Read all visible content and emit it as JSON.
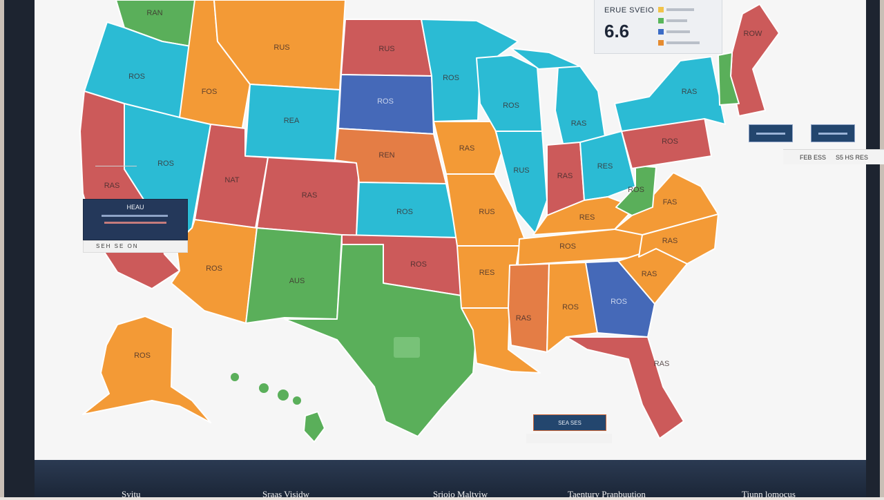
{
  "stat_card": {
    "label": "ERUE SVEIO",
    "value": "6.6",
    "legend_colors": [
      "#f1c34a",
      "#59b65b",
      "#3b6cc6",
      "#e58b2f"
    ]
  },
  "left_panel": {
    "title": "HEAU",
    "footer": "SEH SE ON"
  },
  "right_values": [
    "FEB ESS",
    "S5 HS RES"
  ],
  "bottom_legend": {
    "title": "SEA SES"
  },
  "tabs": [
    "Svitu",
    "Sraas Visidw",
    "Srioio Maltviw",
    "Taentury Pranbuution",
    "Tiunn lomocus"
  ],
  "colors": {
    "orange": "#f39a36",
    "teal": "#2bbbd4",
    "red": "#cc5a5a",
    "blue": "#4569b8",
    "green": "#5aaf5a",
    "burnt": "#e47d45",
    "frame": "#1d2430"
  },
  "states": [
    {
      "id": "washington",
      "label": "RAN",
      "color": "#5aaf5a"
    },
    {
      "id": "oregon",
      "label": "ROS",
      "color": "#2bbbd4"
    },
    {
      "id": "california",
      "label": "RAS",
      "color": "#cc5a5a"
    },
    {
      "id": "idaho",
      "label": "FOS",
      "color": "#f39a36"
    },
    {
      "id": "nevada",
      "label": "ROS",
      "color": "#2bbbd4"
    },
    {
      "id": "montana",
      "label": "RUS",
      "color": "#f39a36"
    },
    {
      "id": "wyoming",
      "label": "REA",
      "color": "#2bbbd4"
    },
    {
      "id": "utah",
      "label": "NAT",
      "color": "#cc5a5a"
    },
    {
      "id": "colorado",
      "label": "RAS",
      "color": "#cc5a5a"
    },
    {
      "id": "arizona",
      "label": "ROS",
      "color": "#f39a36"
    },
    {
      "id": "new-mexico",
      "label": "AUS",
      "color": "#5aaf5a"
    },
    {
      "id": "north-dakota",
      "label": "RUS",
      "color": "#cc5a5a"
    },
    {
      "id": "south-dakota",
      "label": "ROS",
      "color": "#4569b8"
    },
    {
      "id": "nebraska",
      "label": "REN",
      "color": "#e47d45"
    },
    {
      "id": "kansas",
      "label": "ROS",
      "color": "#2bbbd4"
    },
    {
      "id": "oklahoma",
      "label": "ROS",
      "color": "#cc5a5a"
    },
    {
      "id": "texas",
      "label": "",
      "color": "#5aaf5a"
    },
    {
      "id": "minnesota",
      "label": "ROS",
      "color": "#2bbbd4"
    },
    {
      "id": "iowa",
      "label": "RAS",
      "color": "#f39a36"
    },
    {
      "id": "missouri",
      "label": "RUS",
      "color": "#f39a36"
    },
    {
      "id": "arkansas",
      "label": "RES",
      "color": "#f39a36"
    },
    {
      "id": "louisiana",
      "label": "",
      "color": "#f39a36"
    },
    {
      "id": "wisconsin",
      "label": "ROS",
      "color": "#2bbbd4"
    },
    {
      "id": "illinois",
      "label": "RUS",
      "color": "#2bbbd4"
    },
    {
      "id": "michigan",
      "label": "RAS",
      "color": "#2bbbd4"
    },
    {
      "id": "indiana",
      "label": "RAS",
      "color": "#cc5a5a"
    },
    {
      "id": "ohio",
      "label": "RES",
      "color": "#2bbbd4"
    },
    {
      "id": "kentucky",
      "label": "RES",
      "color": "#f39a36"
    },
    {
      "id": "tennessee",
      "label": "ROS",
      "color": "#f39a36"
    },
    {
      "id": "mississippi",
      "label": "RAS",
      "color": "#e47d45"
    },
    {
      "id": "alabama",
      "label": "ROS",
      "color": "#f39a36"
    },
    {
      "id": "georgia",
      "label": "ROS",
      "color": "#4569b8"
    },
    {
      "id": "florida",
      "label": "RAS",
      "color": "#cc5a5a"
    },
    {
      "id": "south-carolina",
      "label": "RAS",
      "color": "#f39a36"
    },
    {
      "id": "north-carolina",
      "label": "RAS",
      "color": "#f39a36"
    },
    {
      "id": "virginia",
      "label": "FAS",
      "color": "#f39a36"
    },
    {
      "id": "west-virginia",
      "label": "ROS",
      "color": "#5aaf5a"
    },
    {
      "id": "pennsylvania",
      "label": "ROS",
      "color": "#cc5a5a"
    },
    {
      "id": "new-york",
      "label": "RAS",
      "color": "#2bbbd4"
    },
    {
      "id": "new-england",
      "label": "ROW",
      "color": "#cc5a5a"
    },
    {
      "id": "vermont-nh",
      "label": "",
      "color": "#5aaf5a"
    },
    {
      "id": "alaska",
      "label": "ROS",
      "color": "#f39a36"
    },
    {
      "id": "hawaii",
      "label": "",
      "color": "#5aaf5a"
    }
  ]
}
